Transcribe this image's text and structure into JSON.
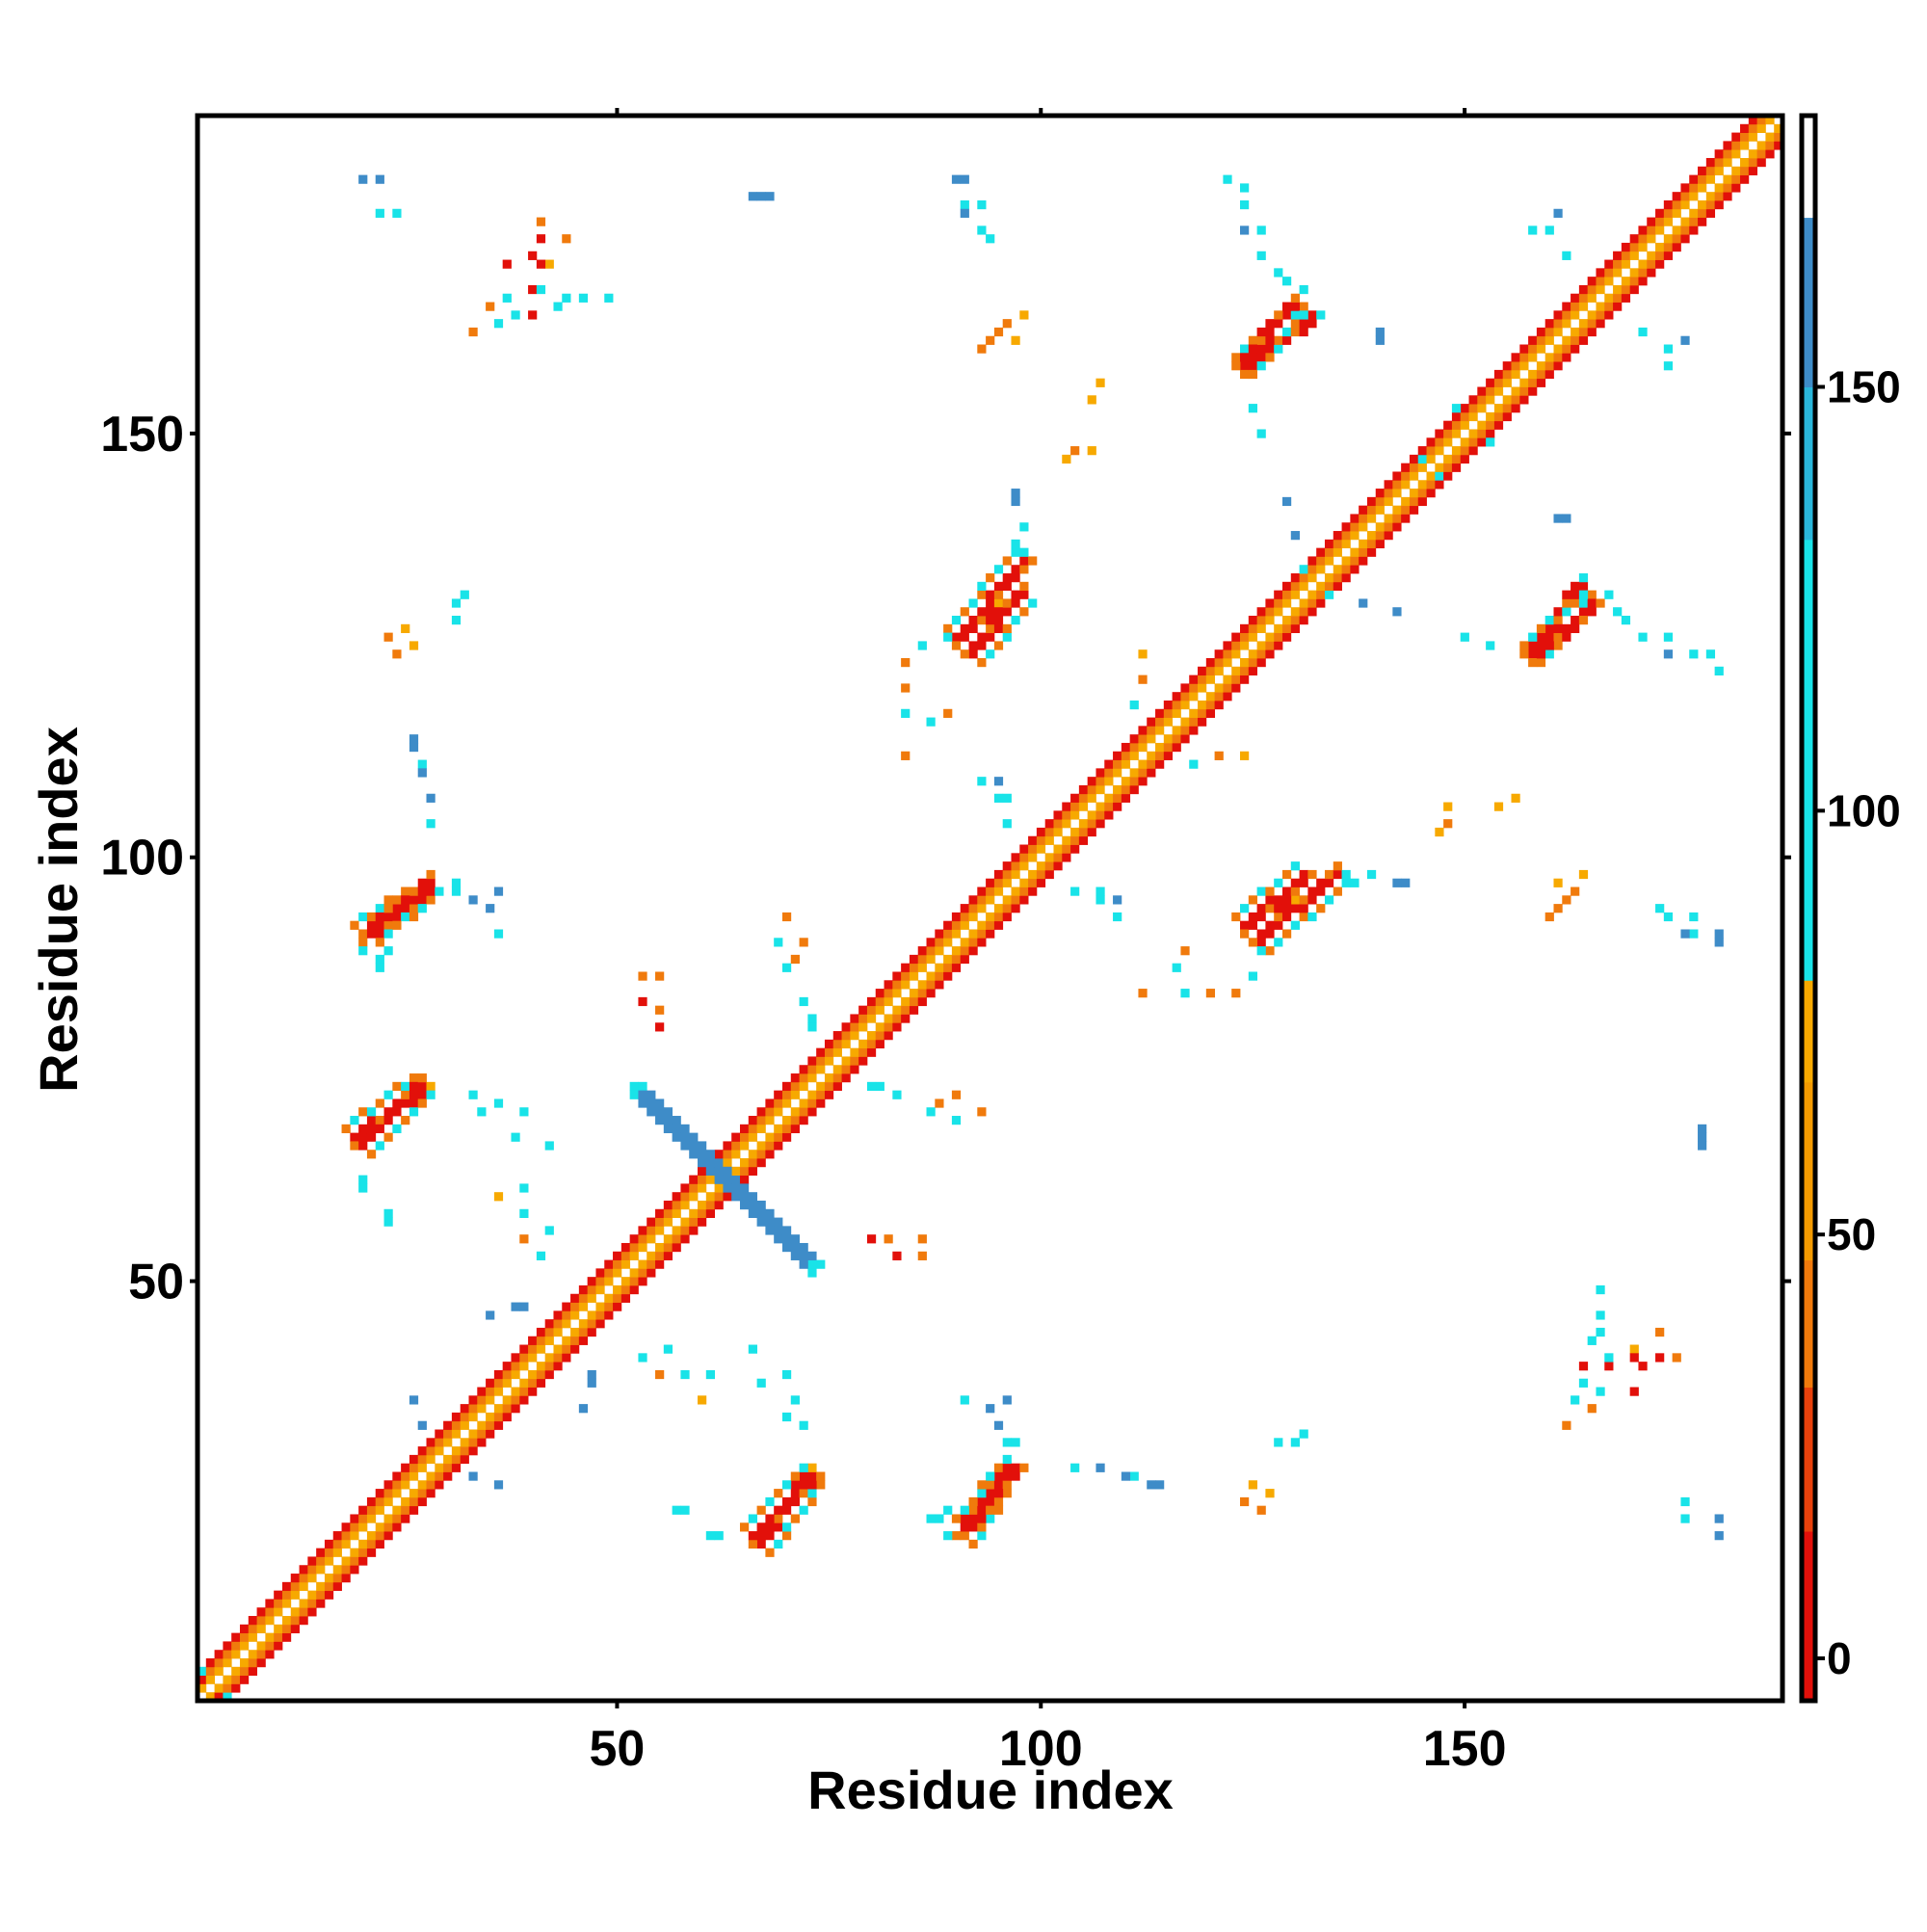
{
  "chart_data": {
    "type": "heatmap",
    "title": "",
    "xlabel": "Residue index",
    "ylabel": "Residue index",
    "xlim": [
      1,
      187
    ],
    "ylim": [
      1,
      187
    ],
    "x_ticks": [
      50,
      100,
      150
    ],
    "y_ticks": [
      50,
      100,
      150
    ],
    "grid": false,
    "colorbar": {
      "label": "",
      "ticks": [
        0,
        50,
        100,
        150
      ],
      "range": [
        -5,
        182
      ],
      "bands": [
        {
          "from": -5,
          "to": 15,
          "color": "#E2100A"
        },
        {
          "from": 15,
          "to": 32,
          "color": "#E8410C"
        },
        {
          "from": 32,
          "to": 47,
          "color": "#F07A0C"
        },
        {
          "from": 47,
          "to": 68,
          "color": "#F39A00"
        },
        {
          "from": 68,
          "to": 80,
          "color": "#F7A900"
        },
        {
          "from": 80,
          "to": 132,
          "color": "#19E3E8"
        },
        {
          "from": 132,
          "to": 150,
          "color": "#2AB6DA"
        },
        {
          "from": 150,
          "to": 170,
          "color": "#3E8CC8"
        },
        {
          "from": 170,
          "to": 182,
          "color": "#ffffff"
        }
      ]
    },
    "colors": {
      "strong": "#E2100A",
      "medium": "#F07A0C",
      "weak": "#F7A900",
      "cyan": "#19E3E8",
      "blue": "#3E8CC8"
    },
    "diagonal": {
      "from": 1,
      "to": 187,
      "band_halfwidth": 3
    },
    "helix_segments": [
      [
        2,
        13
      ],
      [
        14,
        28
      ],
      [
        29,
        38
      ],
      [
        39,
        55
      ],
      [
        56,
        64
      ],
      [
        65,
        73
      ],
      [
        74,
        86
      ],
      [
        87,
        95
      ],
      [
        96,
        103
      ],
      [
        104,
        117
      ],
      [
        118,
        127
      ],
      [
        128,
        138
      ],
      [
        139,
        150
      ],
      [
        151,
        160
      ],
      [
        161,
        170
      ],
      [
        171,
        187
      ]
    ],
    "contact_streaks": [
      {
        "x1": 67,
        "y1": 19,
        "x2": 73,
        "y2": 27,
        "intensity": "strong"
      },
      {
        "x1": 91,
        "y1": 20,
        "x2": 96,
        "y2": 28,
        "intensity": "strong"
      },
      {
        "x1": 20,
        "y1": 66,
        "x2": 27,
        "y2": 73,
        "intensity": "strong"
      },
      {
        "x1": 21,
        "y1": 91,
        "x2": 28,
        "y2": 97,
        "intensity": "strong"
      },
      {
        "x1": 126,
        "y1": 90,
        "x2": 135,
        "y2": 98,
        "intensity": "strong"
      },
      {
        "x1": 92,
        "y1": 124,
        "x2": 98,
        "y2": 131,
        "intensity": "strong"
      },
      {
        "x1": 158,
        "y1": 124,
        "x2": 164,
        "y2": 132,
        "intensity": "strong"
      },
      {
        "x1": 124,
        "y1": 158,
        "x2": 130,
        "y2": 165,
        "intensity": "strong"
      }
    ],
    "cross_pattern": {
      "x1": 52,
      "y1": 73,
      "x2": 73,
      "y2": 52,
      "intensity": "blue"
    },
    "scatter_contacts": [
      {
        "x": 22,
        "y": 180,
        "intensity": "blue"
      },
      {
        "x": 24,
        "y": 176,
        "intensity": "cyan"
      },
      {
        "x": 35,
        "y": 165,
        "intensity": "medium"
      },
      {
        "x": 37,
        "y": 166,
        "intensity": "cyan"
      },
      {
        "x": 40,
        "y": 167,
        "intensity": "strong"
      },
      {
        "x": 40,
        "y": 171,
        "intensity": "strong"
      },
      {
        "x": 42,
        "y": 170,
        "intensity": "weak"
      },
      {
        "x": 44,
        "y": 166,
        "intensity": "cyan"
      },
      {
        "x": 44,
        "y": 173,
        "intensity": "medium"
      },
      {
        "x": 46,
        "y": 166,
        "intensity": "cyan"
      },
      {
        "x": 49,
        "y": 166,
        "intensity": "cyan"
      },
      {
        "x": 66,
        "y": 178,
        "intensity": "blue"
      },
      {
        "x": 68,
        "y": 178,
        "intensity": "blue"
      },
      {
        "x": 90,
        "y": 180,
        "intensity": "blue"
      },
      {
        "x": 91,
        "y": 177,
        "intensity": "cyan"
      },
      {
        "x": 93,
        "y": 177,
        "intensity": "cyan"
      },
      {
        "x": 94,
        "y": 173,
        "intensity": "cyan"
      },
      {
        "x": 94,
        "y": 161,
        "intensity": "medium"
      },
      {
        "x": 96,
        "y": 163,
        "intensity": "medium"
      },
      {
        "x": 98,
        "y": 164,
        "intensity": "weak"
      },
      {
        "x": 122,
        "y": 180,
        "intensity": "cyan"
      },
      {
        "x": 124,
        "y": 177,
        "intensity": "cyan"
      },
      {
        "x": 126,
        "y": 174,
        "intensity": "cyan"
      },
      {
        "x": 128,
        "y": 169,
        "intensity": "cyan"
      },
      {
        "x": 131,
        "y": 167,
        "intensity": "cyan"
      },
      {
        "x": 140,
        "y": 162,
        "intensity": "blue"
      },
      {
        "x": 158,
        "y": 174,
        "intensity": "cyan"
      },
      {
        "x": 161,
        "y": 176,
        "intensity": "blue"
      },
      {
        "x": 171,
        "y": 162,
        "intensity": "cyan"
      },
      {
        "x": 174,
        "y": 160,
        "intensity": "cyan"
      },
      {
        "x": 103,
        "y": 147,
        "intensity": "weak"
      },
      {
        "x": 106,
        "y": 148,
        "intensity": "weak"
      },
      {
        "x": 97,
        "y": 142,
        "intensity": "blue"
      },
      {
        "x": 97,
        "y": 137,
        "intensity": "cyan"
      },
      {
        "x": 31,
        "y": 128,
        "intensity": "cyan"
      },
      {
        "x": 24,
        "y": 124,
        "intensity": "medium"
      },
      {
        "x": 26,
        "y": 125,
        "intensity": "weak"
      },
      {
        "x": 26,
        "y": 114,
        "intensity": "blue"
      },
      {
        "x": 27,
        "y": 111,
        "intensity": "cyan"
      },
      {
        "x": 28,
        "y": 107,
        "intensity": "blue"
      },
      {
        "x": 28,
        "y": 104,
        "intensity": "blue"
      },
      {
        "x": 31,
        "y": 97,
        "intensity": "cyan"
      },
      {
        "x": 33,
        "y": 95,
        "intensity": "blue"
      },
      {
        "x": 36,
        "y": 96,
        "intensity": "blue"
      },
      {
        "x": 22,
        "y": 88,
        "intensity": "cyan"
      },
      {
        "x": 33,
        "y": 72,
        "intensity": "cyan"
      },
      {
        "x": 36,
        "y": 71,
        "intensity": "cyan"
      },
      {
        "x": 39,
        "y": 70,
        "intensity": "cyan"
      },
      {
        "x": 36,
        "y": 60,
        "intensity": "weak"
      },
      {
        "x": 39,
        "y": 61,
        "intensity": "cyan"
      },
      {
        "x": 20,
        "y": 62,
        "intensity": "cyan"
      },
      {
        "x": 23,
        "y": 58,
        "intensity": "cyan"
      },
      {
        "x": 53,
        "y": 41,
        "intensity": "cyan"
      },
      {
        "x": 56,
        "y": 42,
        "intensity": "cyan"
      },
      {
        "x": 55,
        "y": 39,
        "intensity": "medium"
      },
      {
        "x": 58,
        "y": 39,
        "intensity": "cyan"
      },
      {
        "x": 66,
        "y": 42,
        "intensity": "cyan"
      },
      {
        "x": 67,
        "y": 38,
        "intensity": "cyan"
      },
      {
        "x": 70,
        "y": 34,
        "intensity": "cyan"
      },
      {
        "x": 57,
        "y": 23,
        "intensity": "cyan"
      },
      {
        "x": 61,
        "y": 20,
        "intensity": "cyan"
      },
      {
        "x": 53,
        "y": 83,
        "intensity": "strong"
      },
      {
        "x": 53,
        "y": 86,
        "intensity": "medium"
      },
      {
        "x": 70,
        "y": 93,
        "intensity": "medium"
      },
      {
        "x": 69,
        "y": 90,
        "intensity": "cyan"
      },
      {
        "x": 70,
        "y": 87,
        "intensity": "cyan"
      },
      {
        "x": 72,
        "y": 83,
        "intensity": "cyan"
      },
      {
        "x": 73,
        "y": 81,
        "intensity": "cyan"
      },
      {
        "x": 80,
        "y": 73,
        "intensity": "cyan"
      },
      {
        "x": 83,
        "y": 72,
        "intensity": "cyan"
      },
      {
        "x": 87,
        "y": 70,
        "intensity": "cyan"
      },
      {
        "x": 88,
        "y": 71,
        "intensity": "medium"
      },
      {
        "x": 90,
        "y": 72,
        "intensity": "medium"
      },
      {
        "x": 80,
        "y": 55,
        "intensity": "strong"
      },
      {
        "x": 82,
        "y": 55,
        "intensity": "medium"
      },
      {
        "x": 86,
        "y": 55,
        "intensity": "medium"
      },
      {
        "x": 84,
        "y": 117,
        "intensity": "cyan"
      },
      {
        "x": 87,
        "y": 116,
        "intensity": "cyan"
      },
      {
        "x": 89,
        "y": 117,
        "intensity": "medium"
      },
      {
        "x": 84,
        "y": 112,
        "intensity": "medium"
      },
      {
        "x": 93,
        "y": 109,
        "intensity": "cyan"
      },
      {
        "x": 96,
        "y": 107,
        "intensity": "cyan"
      },
      {
        "x": 104,
        "y": 96,
        "intensity": "cyan"
      },
      {
        "x": 107,
        "y": 95,
        "intensity": "cyan"
      },
      {
        "x": 109,
        "y": 95,
        "intensity": "blue"
      },
      {
        "x": 118,
        "y": 111,
        "intensity": "cyan"
      },
      {
        "x": 121,
        "y": 112,
        "intensity": "medium"
      },
      {
        "x": 124,
        "y": 112,
        "intensity": "weak"
      },
      {
        "x": 136,
        "y": 98,
        "intensity": "cyan"
      },
      {
        "x": 139,
        "y": 98,
        "intensity": "cyan"
      },
      {
        "x": 143,
        "y": 97,
        "intensity": "blue"
      },
      {
        "x": 120,
        "y": 84,
        "intensity": "medium"
      },
      {
        "x": 123,
        "y": 84,
        "intensity": "medium"
      },
      {
        "x": 125,
        "y": 86,
        "intensity": "cyan"
      },
      {
        "x": 126,
        "y": 89,
        "intensity": "cyan"
      },
      {
        "x": 134,
        "y": 131,
        "intensity": "cyan"
      },
      {
        "x": 138,
        "y": 130,
        "intensity": "blue"
      },
      {
        "x": 142,
        "y": 129,
        "intensity": "blue"
      },
      {
        "x": 150,
        "y": 126,
        "intensity": "cyan"
      },
      {
        "x": 153,
        "y": 125,
        "intensity": "cyan"
      },
      {
        "x": 164,
        "y": 133,
        "intensity": "cyan"
      },
      {
        "x": 168,
        "y": 129,
        "intensity": "cyan"
      },
      {
        "x": 171,
        "y": 126,
        "intensity": "cyan"
      },
      {
        "x": 174,
        "y": 124,
        "intensity": "blue"
      },
      {
        "x": 179,
        "y": 124,
        "intensity": "cyan"
      },
      {
        "x": 161,
        "y": 140,
        "intensity": "blue"
      },
      {
        "x": 153,
        "y": 149,
        "intensity": "cyan"
      },
      {
        "x": 147,
        "y": 145,
        "intensity": "cyan"
      },
      {
        "x": 154,
        "y": 106,
        "intensity": "weak"
      },
      {
        "x": 156,
        "y": 107,
        "intensity": "weak"
      },
      {
        "x": 148,
        "y": 104,
        "intensity": "medium"
      },
      {
        "x": 161,
        "y": 97,
        "intensity": "weak"
      },
      {
        "x": 162,
        "y": 95,
        "intensity": "medium"
      },
      {
        "x": 160,
        "y": 93,
        "intensity": "medium"
      },
      {
        "x": 174,
        "y": 93,
        "intensity": "cyan"
      },
      {
        "x": 176,
        "y": 91,
        "intensity": "blue"
      },
      {
        "x": 180,
        "y": 91,
        "intensity": "blue"
      },
      {
        "x": 178,
        "y": 67,
        "intensity": "blue"
      },
      {
        "x": 165,
        "y": 43,
        "intensity": "cyan"
      },
      {
        "x": 164,
        "y": 40,
        "intensity": "strong"
      },
      {
        "x": 167,
        "y": 41,
        "intensity": "cyan"
      },
      {
        "x": 164,
        "y": 38,
        "intensity": "cyan"
      },
      {
        "x": 163,
        "y": 36,
        "intensity": "cyan"
      },
      {
        "x": 162,
        "y": 33,
        "intensity": "medium"
      },
      {
        "x": 170,
        "y": 41,
        "intensity": "strong"
      },
      {
        "x": 173,
        "y": 41,
        "intensity": "strong"
      },
      {
        "x": 170,
        "y": 37,
        "intensity": "strong"
      },
      {
        "x": 175,
        "y": 41,
        "intensity": "medium"
      },
      {
        "x": 130,
        "y": 31,
        "intensity": "cyan"
      },
      {
        "x": 131,
        "y": 32,
        "intensity": "cyan"
      },
      {
        "x": 126,
        "y": 23,
        "intensity": "medium"
      },
      {
        "x": 127,
        "y": 25,
        "intensity": "weak"
      },
      {
        "x": 104,
        "y": 28,
        "intensity": "cyan"
      },
      {
        "x": 107,
        "y": 28,
        "intensity": "blue"
      },
      {
        "x": 110,
        "y": 27,
        "intensity": "blue"
      },
      {
        "x": 113,
        "y": 26,
        "intensity": "blue"
      },
      {
        "x": 176,
        "y": 22,
        "intensity": "cyan"
      },
      {
        "x": 180,
        "y": 20,
        "intensity": "blue"
      },
      {
        "x": 33,
        "y": 27,
        "intensity": "blue"
      },
      {
        "x": 36,
        "y": 26,
        "intensity": "blue"
      },
      {
        "x": 46,
        "y": 35,
        "intensity": "blue"
      },
      {
        "x": 47,
        "y": 38,
        "intensity": "blue"
      },
      {
        "x": 39,
        "y": 47,
        "intensity": "blue"
      },
      {
        "x": 91,
        "y": 36,
        "intensity": "cyan"
      },
      {
        "x": 94,
        "y": 35,
        "intensity": "blue"
      },
      {
        "x": 96,
        "y": 31,
        "intensity": "cyan"
      },
      {
        "x": 89,
        "y": 23,
        "intensity": "cyan"
      },
      {
        "x": 87,
        "y": 22,
        "intensity": "cyan"
      },
      {
        "x": 89,
        "y": 20,
        "intensity": "cyan"
      }
    ]
  }
}
